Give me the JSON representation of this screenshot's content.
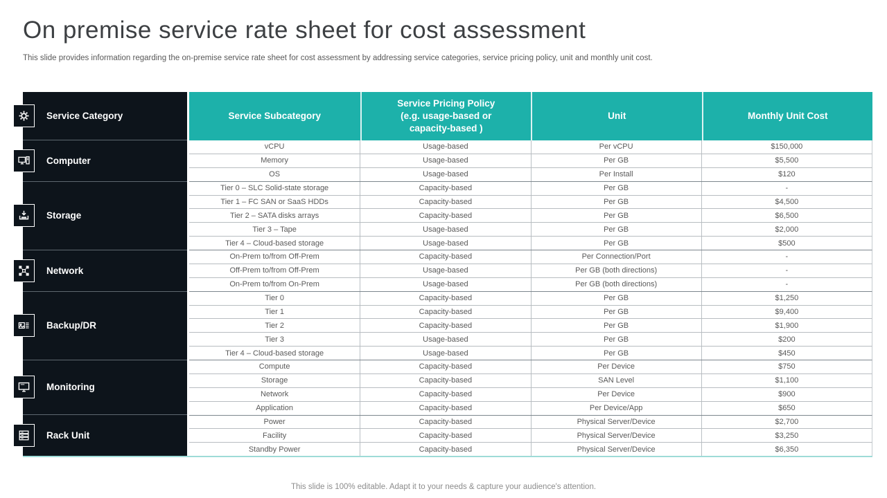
{
  "slide": {
    "title": "On premise service rate sheet for cost assessment",
    "subtitle": "This slide provides information regarding the on-premise service rate sheet for cost assessment by addressing service categories, service pricing policy, unit and monthly unit cost.",
    "footer": "This slide is 100% editable. Adapt it to your needs & capture your audience's attention."
  },
  "colors": {
    "teal_header": "#1db1aa",
    "sidebar_dark": "#0d141b",
    "body_text": "#595959",
    "bottom_accent": "#9edbd7"
  },
  "table": {
    "category_header": "Service Category",
    "columns": [
      "Service Subcategory",
      "Service Pricing Policy\n(e.g. usage-based or\ncapacity-based )",
      "Unit",
      "Monthly Unit Cost"
    ],
    "categories": [
      {
        "label": "Computer",
        "icon": "computer-icon",
        "rows": [
          {
            "subcategory": "vCPU",
            "policy": "Usage-based",
            "unit": "Per vCPU",
            "cost": "$150,000"
          },
          {
            "subcategory": "Memory",
            "policy": "Usage-based",
            "unit": "Per GB",
            "cost": "$5,500"
          },
          {
            "subcategory": "OS",
            "policy": "Usage-based",
            "unit": "Per Install",
            "cost": "$120"
          }
        ]
      },
      {
        "label": "Storage",
        "icon": "storage-icon",
        "rows": [
          {
            "subcategory": "Tier 0 – SLC Solid-state storage",
            "policy": "Capacity-based",
            "unit": "Per GB",
            "cost": "-"
          },
          {
            "subcategory": "Tier 1 – FC SAN or SaaS HDDs",
            "policy": "Capacity-based",
            "unit": "Per GB",
            "cost": "$4,500"
          },
          {
            "subcategory": "Tier 2 – SATA disks arrays",
            "policy": "Capacity-based",
            "unit": "Per GB",
            "cost": "$6,500"
          },
          {
            "subcategory": "Tier 3 – Tape",
            "policy": "Usage-based",
            "unit": "Per GB",
            "cost": "$2,000"
          },
          {
            "subcategory": "Tier 4 – Cloud-based storage",
            "policy": "Usage-based",
            "unit": "Per GB",
            "cost": "$500"
          }
        ]
      },
      {
        "label": "Network",
        "icon": "network-icon",
        "rows": [
          {
            "subcategory": "On-Prem to/from Off-Prem",
            "policy": "Capacity-based",
            "unit": "Per Connection/Port",
            "cost": "-"
          },
          {
            "subcategory": "Off-Prem to/from Off-Prem",
            "policy": "Usage-based",
            "unit": "Per GB (both directions)",
            "cost": "-"
          },
          {
            "subcategory": "On-Prem to/from On-Prem",
            "policy": "Usage-based",
            "unit": "Per GB (both directions)",
            "cost": "-"
          }
        ]
      },
      {
        "label": "Backup/DR",
        "icon": "backup-icon",
        "rows": [
          {
            "subcategory": "Tier 0",
            "policy": "Capacity-based",
            "unit": "Per GB",
            "cost": "$1,250"
          },
          {
            "subcategory": "Tier 1",
            "policy": "Capacity-based",
            "unit": "Per GB",
            "cost": "$9,400"
          },
          {
            "subcategory": "Tier 2",
            "policy": "Capacity-based",
            "unit": "Per GB",
            "cost": "$1,900"
          },
          {
            "subcategory": "Tier 3",
            "policy": "Usage-based",
            "unit": "Per GB",
            "cost": "$200"
          },
          {
            "subcategory": "Tier 4 – Cloud-based storage",
            "policy": "Usage-based",
            "unit": "Per GB",
            "cost": "$450"
          }
        ]
      },
      {
        "label": "Monitoring",
        "icon": "monitoring-icon",
        "rows": [
          {
            "subcategory": "Compute",
            "policy": "Capacity-based",
            "unit": "Per Device",
            "cost": "$750"
          },
          {
            "subcategory": "Storage",
            "policy": "Capacity-based",
            "unit": "SAN Level",
            "cost": "$1,100"
          },
          {
            "subcategory": "Network",
            "policy": "Capacity-based",
            "unit": "Per Device",
            "cost": "$900"
          },
          {
            "subcategory": "Application",
            "policy": "Capacity-based",
            "unit": "Per Device/App",
            "cost": "$650"
          }
        ]
      },
      {
        "label": "Rack Unit",
        "icon": "rack-icon",
        "rows": [
          {
            "subcategory": "Power",
            "policy": "Capacity-based",
            "unit": "Physical Server/Device",
            "cost": "$2,700"
          },
          {
            "subcategory": "Facility",
            "policy": "Capacity-based",
            "unit": "Physical Server/Device",
            "cost": "$3,250"
          },
          {
            "subcategory": "Standby Power",
            "policy": "Capacity-based",
            "unit": "Physical Server/Device",
            "cost": "$6,350"
          }
        ]
      }
    ]
  }
}
